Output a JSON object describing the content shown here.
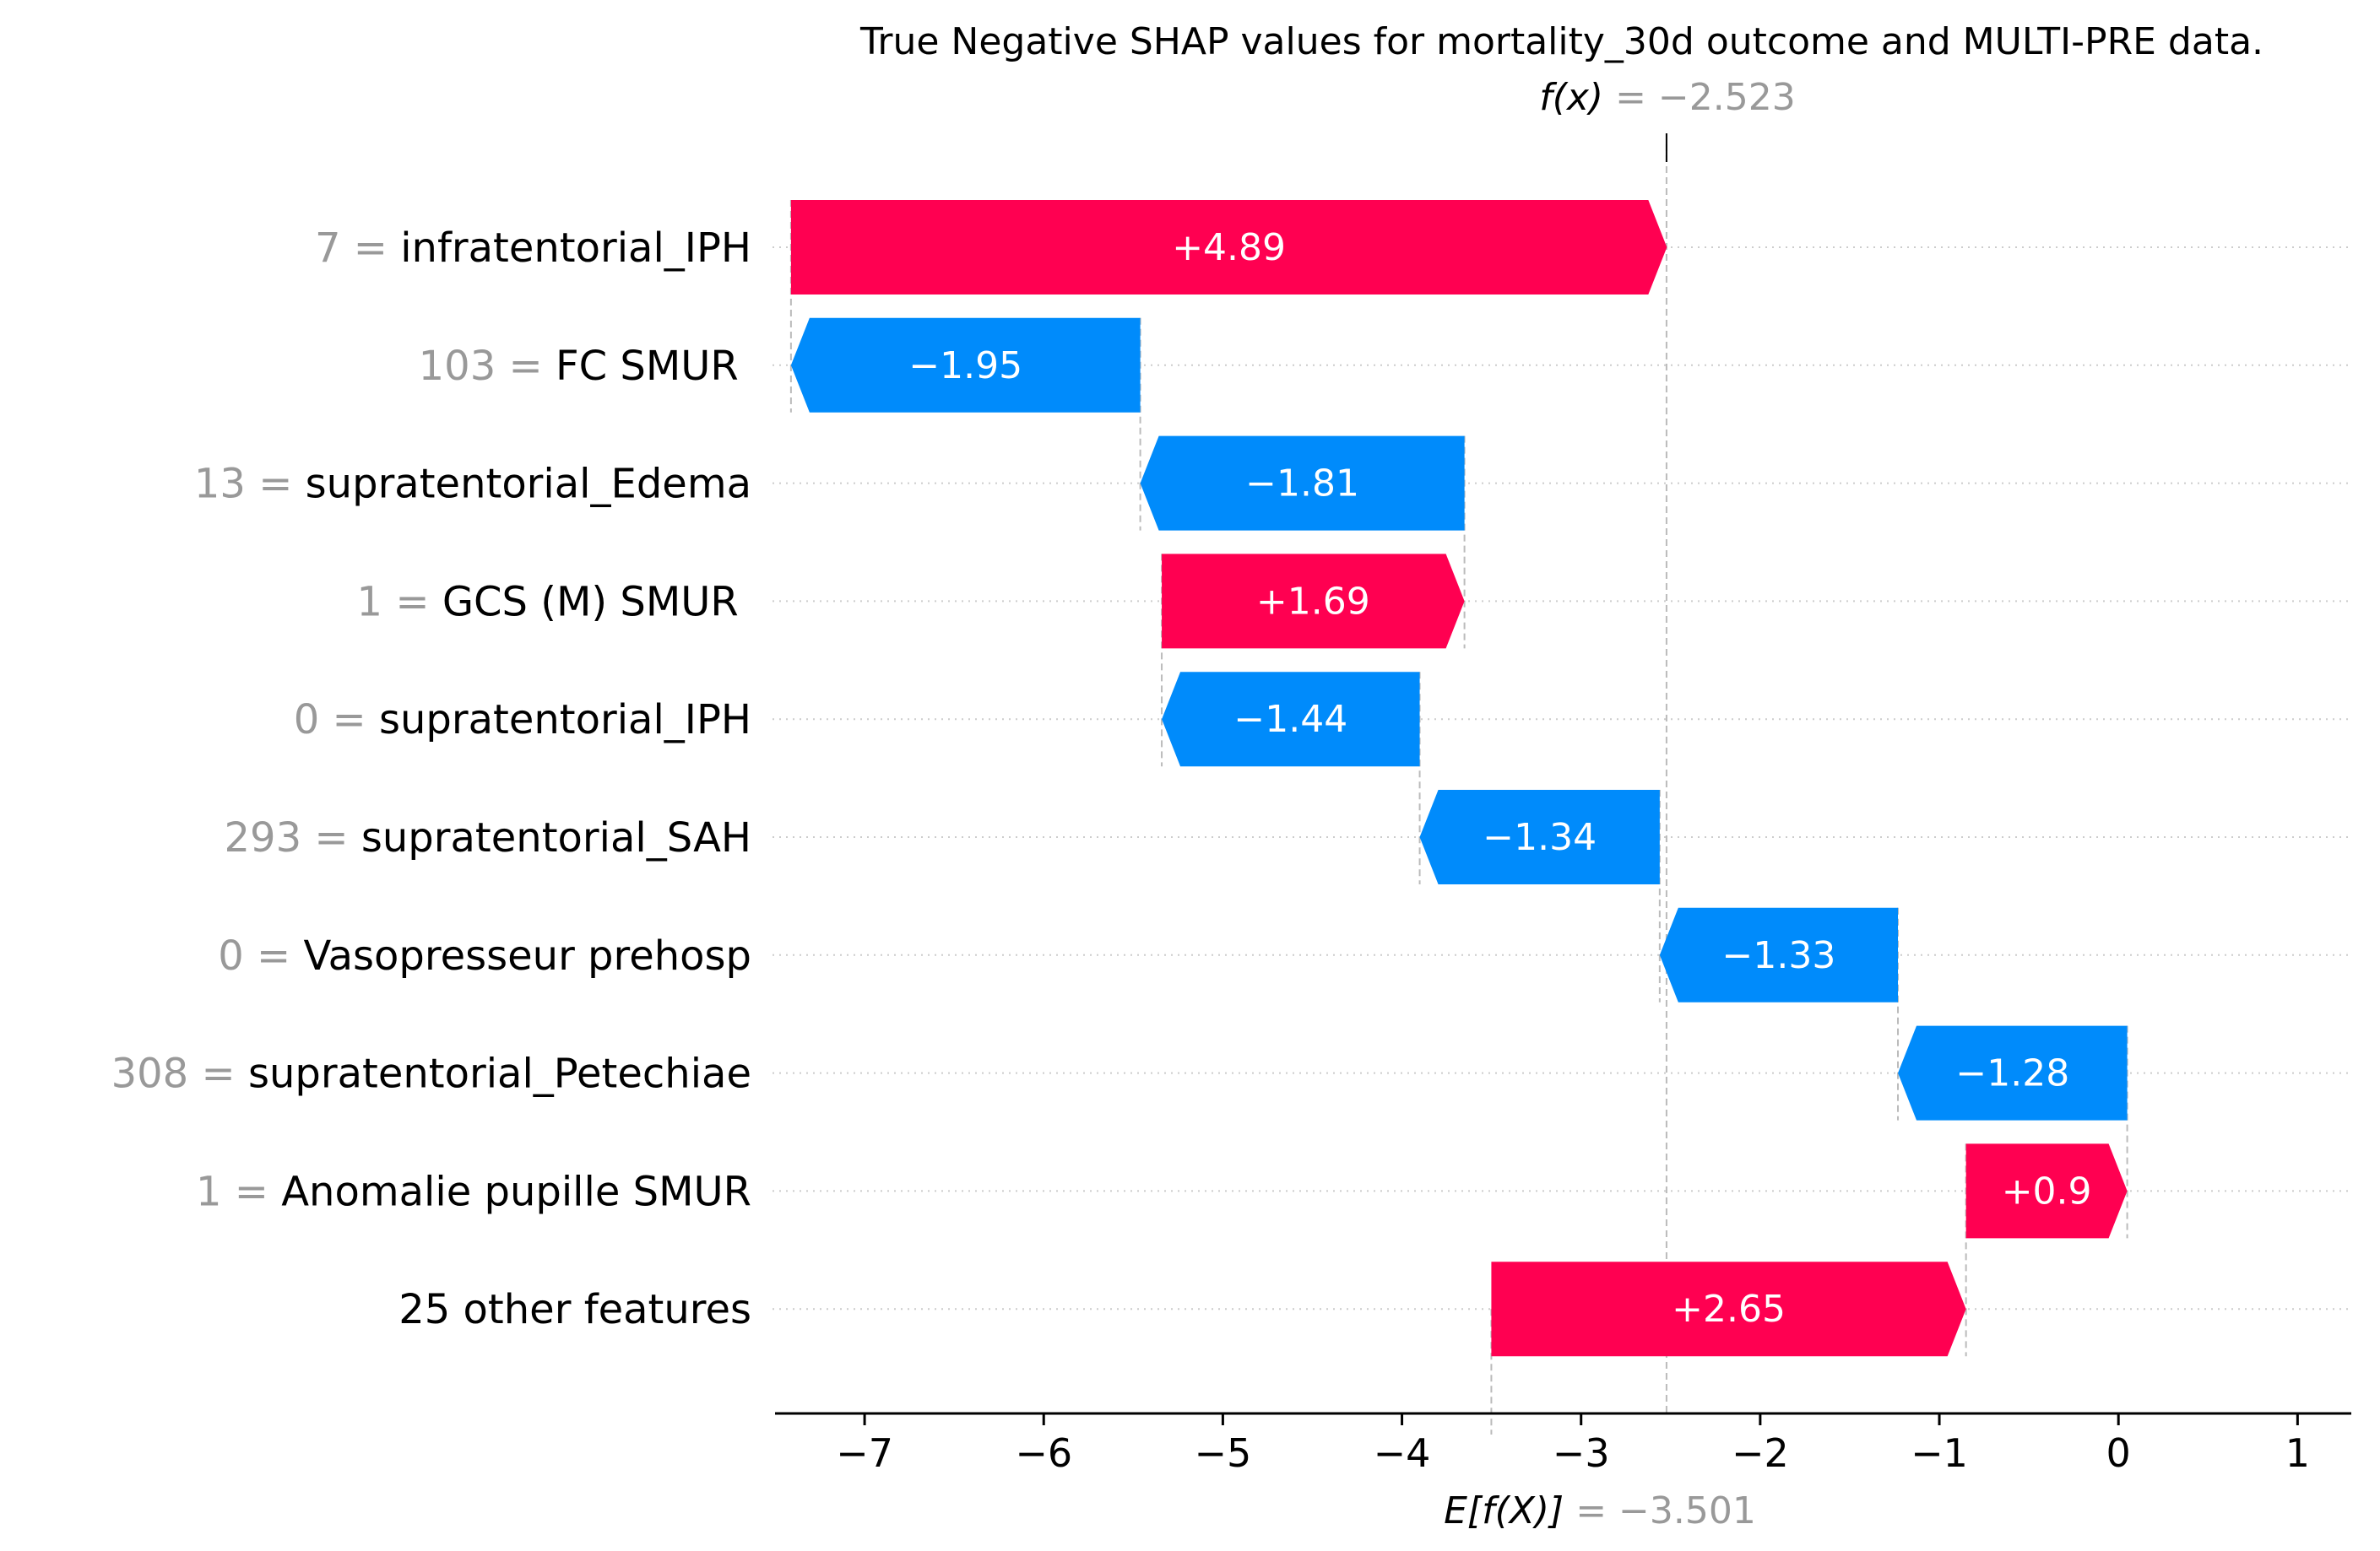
{
  "chart_data": {
    "type": "waterfall",
    "title": "True Negative SHAP values for mortality_30d outcome and MULTI-PRE data.",
    "fx": {
      "prefix": "f(x)",
      "text": " = −2.523",
      "value": -2.523
    },
    "base": {
      "prefix": "E[f(X)]",
      "text": " = −3.501",
      "value": -3.501
    },
    "xlim": [
      -7.5,
      1.3
    ],
    "xticks": [
      {
        "value": -7,
        "label": "−7"
      },
      {
        "value": -6,
        "label": "−6"
      },
      {
        "value": -5,
        "label": "−5"
      },
      {
        "value": -4,
        "label": "−4"
      },
      {
        "value": -3,
        "label": "−3"
      },
      {
        "value": -2,
        "label": "−2"
      },
      {
        "value": -1,
        "label": "−1"
      },
      {
        "value": 0,
        "label": "0"
      },
      {
        "value": 1,
        "label": "1"
      }
    ],
    "features": [
      {
        "value_label": "7 = ",
        "name": "infratentorial_IPH",
        "contribution": 4.89,
        "label": "+4.89"
      },
      {
        "value_label": "103 = ",
        "name": "FC SMUR ",
        "contribution": -1.95,
        "label": "−1.95"
      },
      {
        "value_label": "13 = ",
        "name": "supratentorial_Edema",
        "contribution": -1.81,
        "label": "−1.81"
      },
      {
        "value_label": "1 = ",
        "name": "GCS (M) SMUR ",
        "contribution": 1.69,
        "label": "+1.69"
      },
      {
        "value_label": "0 = ",
        "name": "supratentorial_IPH",
        "contribution": -1.44,
        "label": "−1.44"
      },
      {
        "value_label": "293 = ",
        "name": "supratentorial_SAH",
        "contribution": -1.34,
        "label": "−1.34"
      },
      {
        "value_label": "0 = ",
        "name": "Vasopresseur prehosp",
        "contribution": -1.33,
        "label": "−1.33"
      },
      {
        "value_label": "308 = ",
        "name": "supratentorial_Petechiae",
        "contribution": -1.28,
        "label": "−1.28"
      },
      {
        "value_label": "1 = ",
        "name": "Anomalie pupille SMUR",
        "contribution": 0.9,
        "label": "+0.9"
      },
      {
        "value_label": "",
        "name": "25 other features",
        "contribution": 2.65,
        "label": "+2.65"
      }
    ],
    "colors": {
      "positive": "#ff0051",
      "negative": "#008bfb",
      "value_text": "#999999",
      "text": "#000000"
    }
  }
}
